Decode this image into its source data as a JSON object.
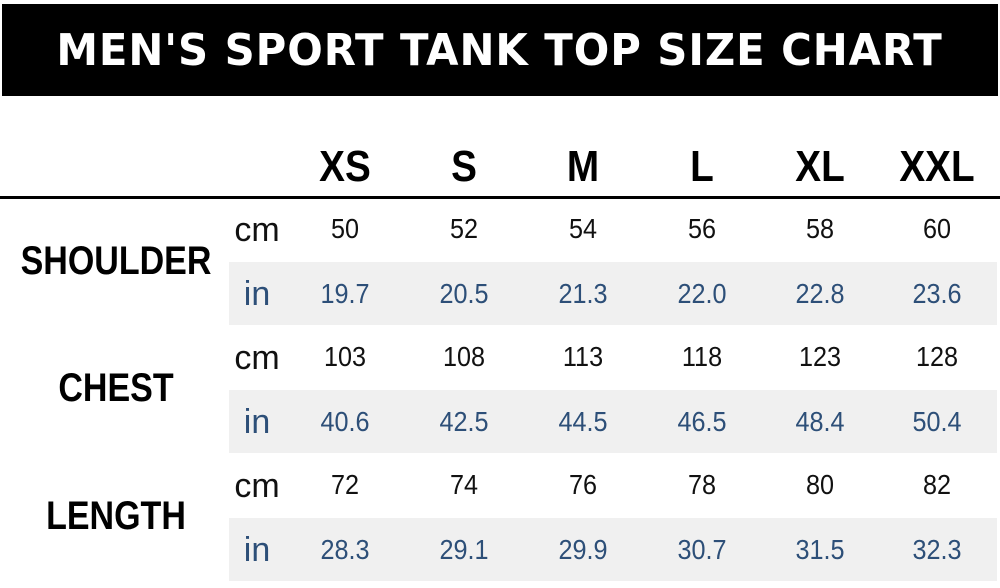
{
  "title": "MEN'S SPORT TANK TOP SIZE CHART",
  "sizes": [
    "XS",
    "S",
    "M",
    "L",
    "XL",
    "XXL"
  ],
  "rows": [
    {
      "label": "SHOULDER",
      "cm_unit": "cm",
      "in_unit": "in",
      "cm": [
        "50",
        "52",
        "54",
        "56",
        "58",
        "60"
      ],
      "in": [
        "19.7",
        "20.5",
        "21.3",
        "22.0",
        "22.8",
        "23.6"
      ]
    },
    {
      "label": "CHEST",
      "cm_unit": "cm",
      "in_unit": "in",
      "cm": [
        "103",
        "108",
        "113",
        "118",
        "123",
        "128"
      ],
      "in": [
        "40.6",
        "42.5",
        "44.5",
        "46.5",
        "48.4",
        "50.4"
      ]
    },
    {
      "label": "LENGTH",
      "cm_unit": "cm",
      "in_unit": "in",
      "cm": [
        "72",
        "74",
        "76",
        "78",
        "80",
        "82"
      ],
      "in": [
        "28.3",
        "29.1",
        "29.9",
        "30.7",
        "31.5",
        "32.3"
      ]
    }
  ],
  "colors": {
    "title_bg": "#000000",
    "title_text": "#ffffff",
    "band": "#f0f0f0",
    "inch_text": "#2d4f78"
  }
}
